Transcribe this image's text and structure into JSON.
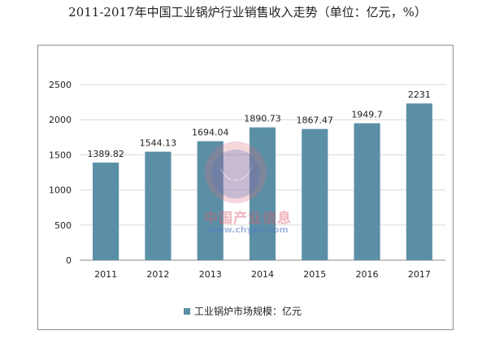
{
  "chart_data": {
    "type": "bar",
    "title": "2011-2017年中国工业锅炉行业销售收入走势（单位：亿元，%）",
    "categories": [
      "2011",
      "2012",
      "2013",
      "2014",
      "2015",
      "2016",
      "2017"
    ],
    "series": [
      {
        "name": "工业锅炉市场规模：亿元",
        "values": [
          1389.82,
          1544.13,
          1694.04,
          1890.73,
          1867.47,
          1949.7,
          2231
        ],
        "labels": [
          "1389.82",
          "1544.13",
          "1694.04",
          "1890.73",
          "1867.47",
          "1949.7",
          "2231"
        ]
      }
    ],
    "yticks": [
      "0",
      "500",
      "1000",
      "1500",
      "2000",
      "2500"
    ],
    "ylim": [
      0,
      2500
    ],
    "grid": true,
    "legend_position": "bottom",
    "bar_color": "#5b8fa6",
    "grid_color": "#d9d9d9",
    "axis_color": "#888888"
  },
  "watermark": {
    "text": "中国产业信息",
    "url": "www.chyxx.com"
  }
}
